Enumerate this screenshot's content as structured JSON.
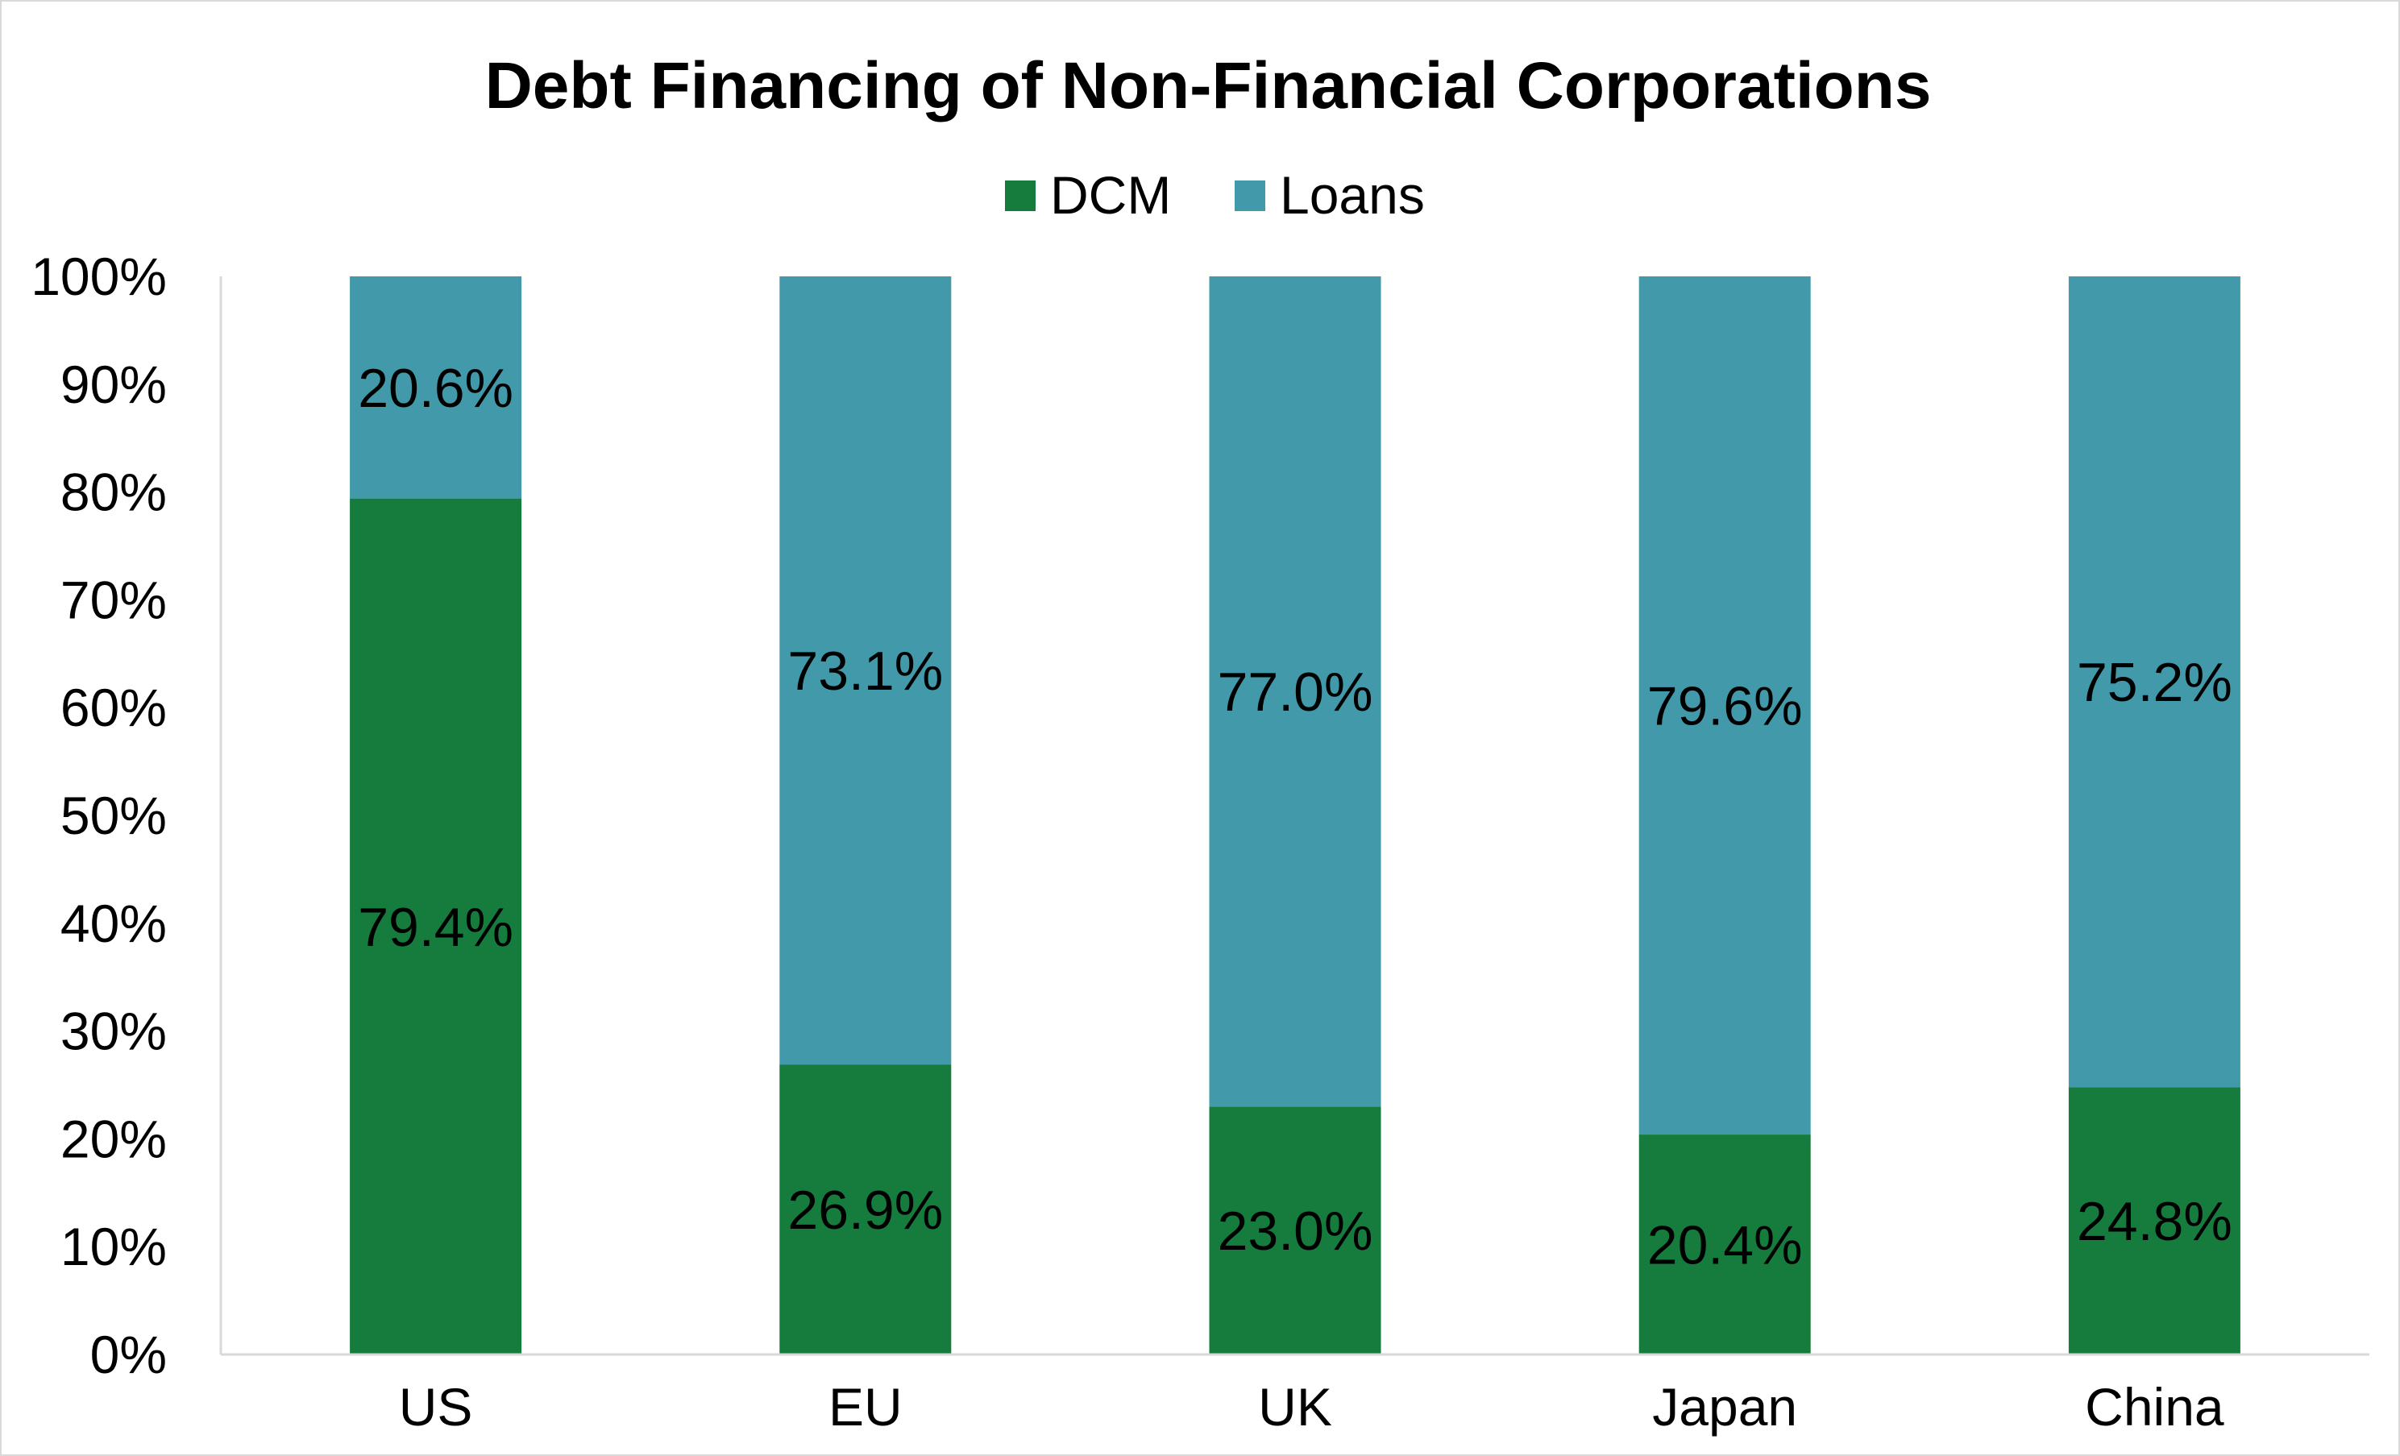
{
  "chart_data": {
    "type": "bar",
    "stacked": true,
    "title": "Debt Financing of Non-Financial Corporations",
    "xlabel": "",
    "ylabel": "",
    "categories": [
      "US",
      "EU",
      "UK",
      "Japan",
      "China"
    ],
    "series": [
      {
        "name": "DCM",
        "values": [
          79.4,
          26.9,
          23.0,
          20.4,
          24.8
        ],
        "labels": [
          "79.4%",
          "26.9%",
          "23.0%",
          "20.4%",
          "24.8%"
        ],
        "color": "#157c3d"
      },
      {
        "name": "Loans",
        "values": [
          20.6,
          73.1,
          77.0,
          79.6,
          75.2
        ],
        "labels": [
          "20.6%",
          "73.1%",
          "77.0%",
          "79.6%",
          "75.2%"
        ],
        "color": "#4299aa"
      }
    ],
    "ylim": [
      0,
      100
    ],
    "yticks": [
      "0%",
      "10%",
      "20%",
      "30%",
      "40%",
      "50%",
      "60%",
      "70%",
      "80%",
      "90%",
      "100%"
    ],
    "grid": false,
    "legend_position": "top"
  }
}
